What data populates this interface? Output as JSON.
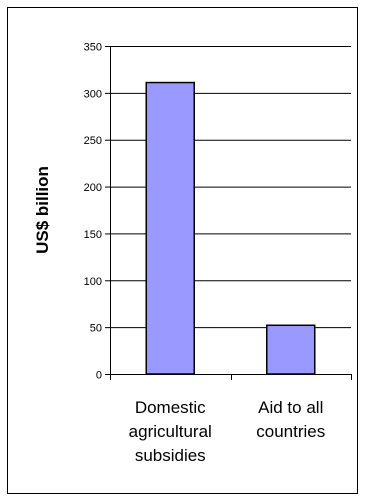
{
  "chart_data": {
    "type": "bar",
    "categories": [
      [
        "Domestic",
        "agricultural",
        "subsidies"
      ],
      [
        "Aid to all",
        "countries"
      ]
    ],
    "values": [
      311,
      52
    ],
    "title": "",
    "xlabel": "",
    "ylabel": "US$ billion",
    "ylim": [
      0,
      350
    ],
    "yticks": [
      0,
      50,
      100,
      150,
      200,
      250,
      300,
      350
    ],
    "grid": true,
    "legend": "none",
    "colors": {
      "bar_fill": "#9999ff",
      "bar_stroke": "#000000",
      "grid": "#000000",
      "axis": "#000000"
    }
  }
}
